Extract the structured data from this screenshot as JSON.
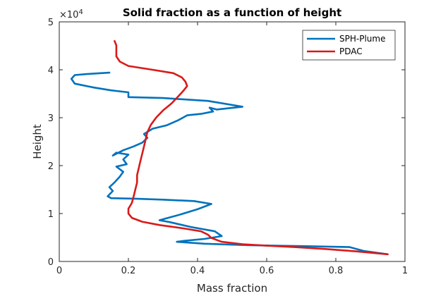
{
  "chart_data": {
    "type": "line",
    "title": "Solid fraction as a function of height",
    "xlabel": "Mass fraction",
    "ylabel": "Height",
    "xlim": [
      0,
      1
    ],
    "ylim": [
      0,
      50000
    ],
    "x_ticks": [
      0,
      0.2,
      0.4,
      0.6,
      0.8,
      1
    ],
    "x_tick_labels": [
      "0",
      "0.2",
      "0.4",
      "0.6",
      "0.8",
      "1"
    ],
    "y_ticks": [
      0,
      10000,
      20000,
      30000,
      40000,
      50000
    ],
    "y_tick_labels": [
      "0",
      "1",
      "2",
      "3",
      "4",
      "5"
    ],
    "y_exponent_label": "×10",
    "y_exponent_power": "4",
    "grid": false,
    "legend_position": "top-right",
    "series": [
      {
        "name": "SPH-Plume",
        "color": "#0072BD",
        "points": [
          [
            0.95,
            1500
          ],
          [
            0.88,
            2200
          ],
          [
            0.84,
            3000
          ],
          [
            0.7,
            3200
          ],
          [
            0.55,
            3400
          ],
          [
            0.42,
            3700
          ],
          [
            0.34,
            4100
          ],
          [
            0.36,
            4300
          ],
          [
            0.42,
            4700
          ],
          [
            0.47,
            5300
          ],
          [
            0.45,
            6300
          ],
          [
            0.38,
            7200
          ],
          [
            0.32,
            8200
          ],
          [
            0.29,
            8600
          ],
          [
            0.31,
            9000
          ],
          [
            0.35,
            9800
          ],
          [
            0.4,
            10900
          ],
          [
            0.44,
            12000
          ],
          [
            0.39,
            12600
          ],
          [
            0.3,
            12900
          ],
          [
            0.22,
            13100
          ],
          [
            0.15,
            13200
          ],
          [
            0.14,
            13600
          ],
          [
            0.155,
            14700
          ],
          [
            0.145,
            15500
          ],
          [
            0.16,
            16500
          ],
          [
            0.175,
            17700
          ],
          [
            0.185,
            18700
          ],
          [
            0.165,
            19800
          ],
          [
            0.195,
            20300
          ],
          [
            0.185,
            21300
          ],
          [
            0.2,
            22300
          ],
          [
            0.165,
            22700
          ],
          [
            0.155,
            22100
          ],
          [
            0.185,
            23200
          ],
          [
            0.215,
            24000
          ],
          [
            0.24,
            24800
          ],
          [
            0.255,
            25800
          ],
          [
            0.245,
            26600
          ],
          [
            0.27,
            27700
          ],
          [
            0.31,
            28400
          ],
          [
            0.345,
            29500
          ],
          [
            0.37,
            30500
          ],
          [
            0.41,
            30800
          ],
          [
            0.445,
            31300
          ],
          [
            0.435,
            32100
          ],
          [
            0.455,
            31700
          ],
          [
            0.53,
            32300
          ],
          [
            0.43,
            33500
          ],
          [
            0.3,
            34100
          ],
          [
            0.2,
            34300
          ],
          [
            0.2,
            35300
          ],
          [
            0.15,
            35700
          ],
          [
            0.1,
            36300
          ],
          [
            0.045,
            37100
          ],
          [
            0.035,
            38100
          ],
          [
            0.045,
            38900
          ],
          [
            0.08,
            39100
          ],
          [
            0.12,
            39300
          ],
          [
            0.145,
            39400
          ]
        ]
      },
      {
        "name": "PDAC",
        "color": "#D91A1A",
        "points": [
          [
            0.95,
            1500
          ],
          [
            0.86,
            2100
          ],
          [
            0.77,
            2600
          ],
          [
            0.68,
            3000
          ],
          [
            0.6,
            3300
          ],
          [
            0.53,
            3600
          ],
          [
            0.47,
            4100
          ],
          [
            0.44,
            4900
          ],
          [
            0.43,
            5600
          ],
          [
            0.41,
            6300
          ],
          [
            0.36,
            6900
          ],
          [
            0.29,
            7600
          ],
          [
            0.24,
            8300
          ],
          [
            0.21,
            9100
          ],
          [
            0.2,
            10000
          ],
          [
            0.2,
            11000
          ],
          [
            0.21,
            12200
          ],
          [
            0.215,
            13500
          ],
          [
            0.22,
            15000
          ],
          [
            0.225,
            16500
          ],
          [
            0.225,
            18000
          ],
          [
            0.23,
            19500
          ],
          [
            0.235,
            21000
          ],
          [
            0.24,
            22500
          ],
          [
            0.245,
            24000
          ],
          [
            0.25,
            25500
          ],
          [
            0.255,
            27000
          ],
          [
            0.265,
            28500
          ],
          [
            0.28,
            30000
          ],
          [
            0.3,
            31500
          ],
          [
            0.325,
            33000
          ],
          [
            0.345,
            34500
          ],
          [
            0.36,
            35700
          ],
          [
            0.37,
            36600
          ],
          [
            0.365,
            37500
          ],
          [
            0.355,
            38400
          ],
          [
            0.33,
            39300
          ],
          [
            0.27,
            40000
          ],
          [
            0.2,
            40800
          ],
          [
            0.175,
            41700
          ],
          [
            0.165,
            42800
          ],
          [
            0.165,
            44000
          ],
          [
            0.165,
            45100
          ],
          [
            0.16,
            46000
          ]
        ]
      }
    ]
  }
}
